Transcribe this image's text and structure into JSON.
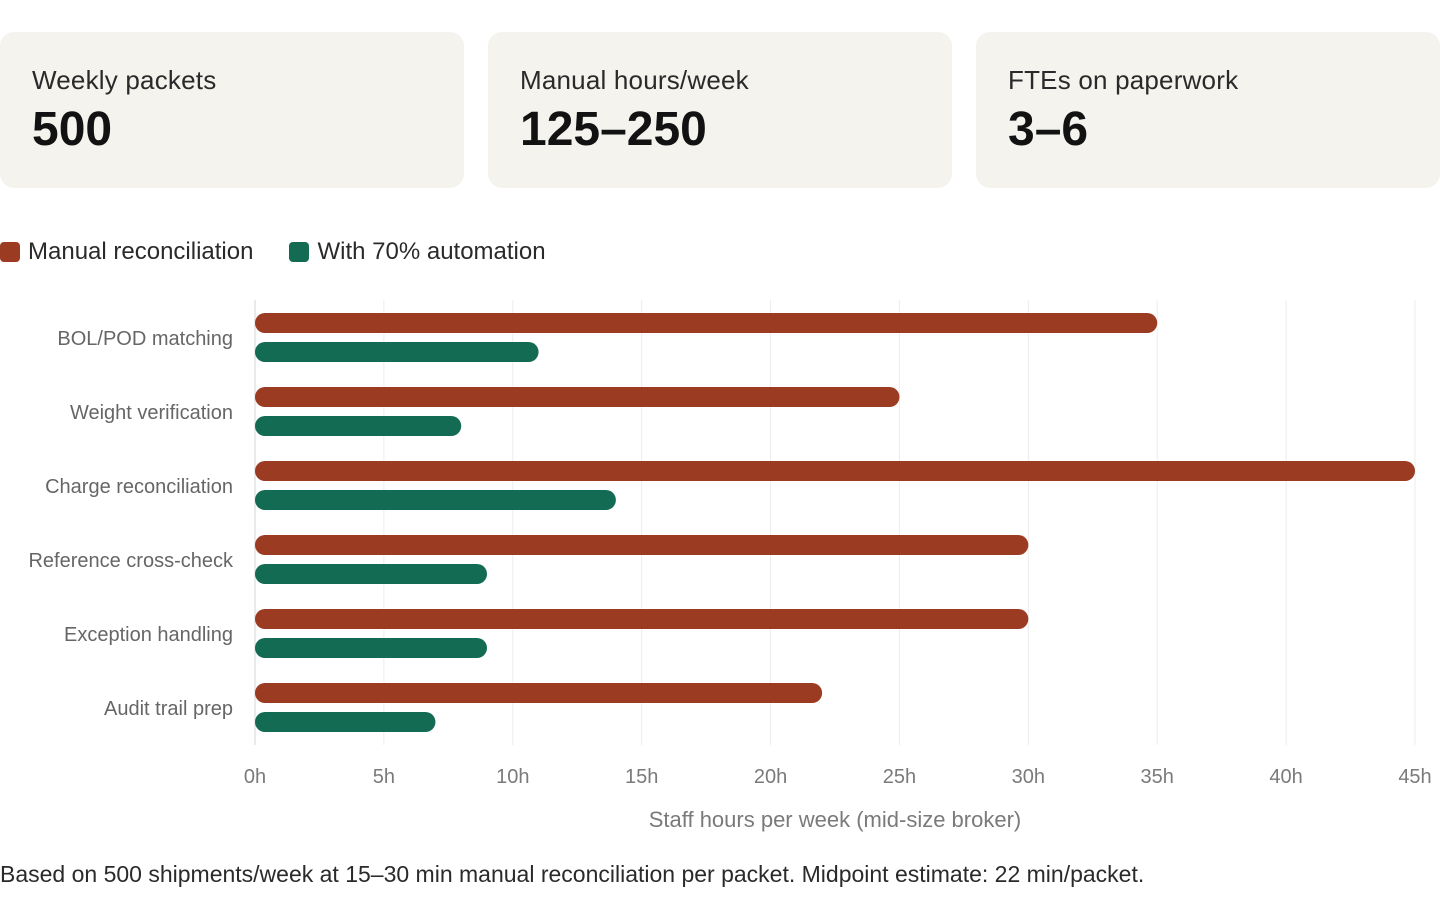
{
  "stats": [
    {
      "label": "Weekly packets",
      "value": "500"
    },
    {
      "label": "Manual hours/week",
      "value": "125–250"
    },
    {
      "label": "FTEs on paperwork",
      "value": "3–6"
    }
  ],
  "colors": {
    "manual": "#9a3b22",
    "automated": "#136b53",
    "grid": "#ececec",
    "axis_text": "#7a7a7a",
    "category_text": "#666666",
    "card_bg": "#f4f3ee"
  },
  "chart_data": {
    "type": "bar",
    "orientation": "horizontal",
    "categories": [
      "BOL/POD matching",
      "Weight verification",
      "Charge reconciliation",
      "Reference cross-check",
      "Exception handling",
      "Audit trail prep"
    ],
    "series": [
      {
        "name": "Manual reconciliation",
        "values": [
          35,
          25,
          45,
          30,
          30,
          22
        ]
      },
      {
        "name": "With 70% automation",
        "values": [
          11,
          8,
          14,
          9,
          9,
          7
        ]
      }
    ],
    "xlim": [
      0,
      45
    ],
    "xticks": [
      0,
      5,
      10,
      15,
      20,
      25,
      30,
      35,
      40,
      45
    ],
    "tick_suffix": "h",
    "xlabel": "Staff hours per week (mid-size broker)",
    "ylabel": "",
    "grid": true,
    "legend_position": "top-left"
  },
  "footnote": "Based on 500 shipments/week at 15–30 min manual reconciliation per packet. Midpoint estimate: 22 min/packet."
}
